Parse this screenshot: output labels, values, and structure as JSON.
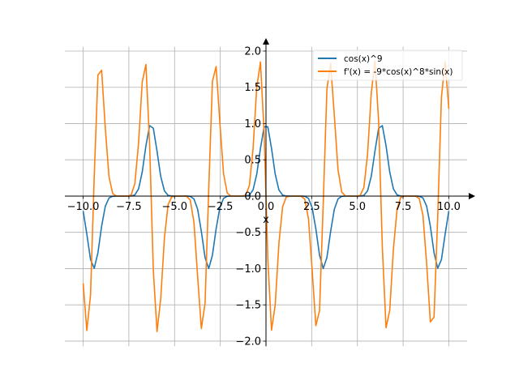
{
  "chart_data": {
    "type": "line",
    "title": "",
    "xlabel": "x",
    "ylabel": "",
    "xlim": [
      -11.0,
      11.0
    ],
    "ylim": [
      -2.07,
      2.06
    ],
    "grid": true,
    "legend_placement": "top-right",
    "x_sampling": {
      "start": -10,
      "end": 10,
      "count": 100
    },
    "series": [
      {
        "name": "cos(x)^9",
        "expression": "cos(x)^9",
        "color": "#1f77b4"
      },
      {
        "name": "f'(x) = -9*cos(x)^8*sin(x)",
        "expression": "-9*cos(x)^8*sin(x)",
        "color": "#ff7f0e"
      }
    ],
    "x_ticks": [
      -10.0,
      -7.5,
      -5.0,
      -2.5,
      0.0,
      2.5,
      5.0,
      7.5,
      10.0
    ],
    "x_tick_labels": [
      "−10.0",
      "−7.5",
      "−5.0",
      "−2.5",
      "0.0",
      "2.5",
      "5.0",
      "7.5",
      "10.0"
    ],
    "y_ticks": [
      -2.0,
      -1.5,
      -1.0,
      -0.5,
      0.0,
      0.5,
      1.0,
      1.5,
      2.0
    ],
    "y_tick_labels": [
      "−2.0",
      "−1.5",
      "−1.0",
      "−0.5",
      "0.0",
      "0.5",
      "1.0",
      "1.5",
      "2.0"
    ]
  }
}
